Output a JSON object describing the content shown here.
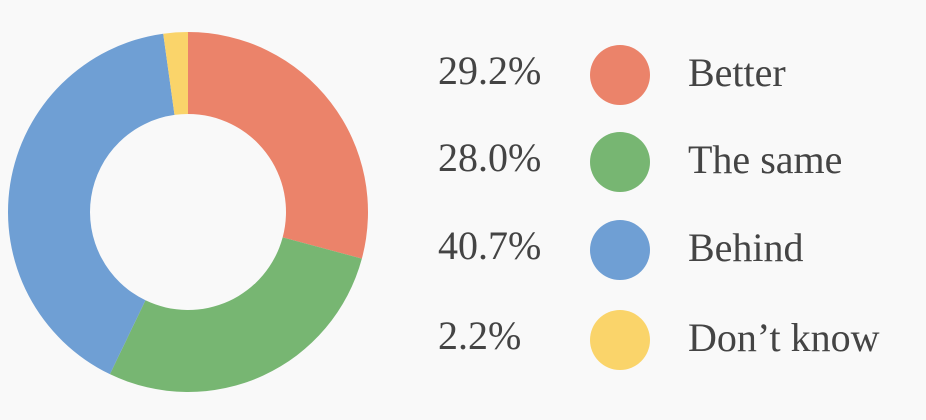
{
  "chart_data": {
    "type": "donut",
    "categories": [
      "Better",
      "The same",
      "Behind",
      "Don’t know"
    ],
    "values": [
      29.2,
      28.0,
      40.7,
      2.2
    ],
    "value_labels": [
      "29.2%",
      "28.0%",
      "40.7%",
      "2.2%"
    ],
    "colors": [
      "#eb836a",
      "#77b672",
      "#6f9fd4",
      "#fad46a"
    ]
  }
}
